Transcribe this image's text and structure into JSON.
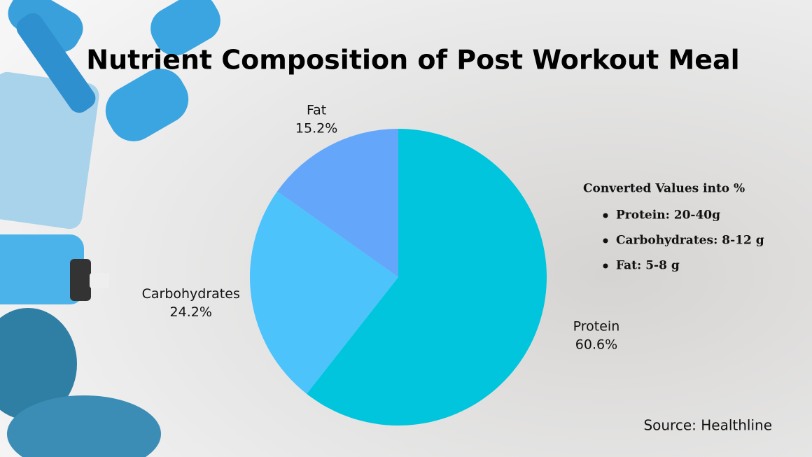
{
  "chart_data": {
    "type": "pie",
    "title": "Nutrient Composition of Post Workout Meal",
    "categories": [
      "Protein",
      "Carbohydrates",
      "Fat"
    ],
    "values": [
      60.6,
      24.2,
      15.2
    ],
    "value_labels": [
      "60.6%",
      "24.2%",
      "15.2%"
    ],
    "colors": [
      "#00c5dc",
      "#4cc3fb",
      "#64a7fa"
    ],
    "note": {
      "title": "Converted Values into %",
      "items": [
        "Protein: 20-40g",
        "Carbohydrates: 8-12 g",
        "Fat: 5-8 g"
      ]
    },
    "source": "Source: Healthline"
  }
}
